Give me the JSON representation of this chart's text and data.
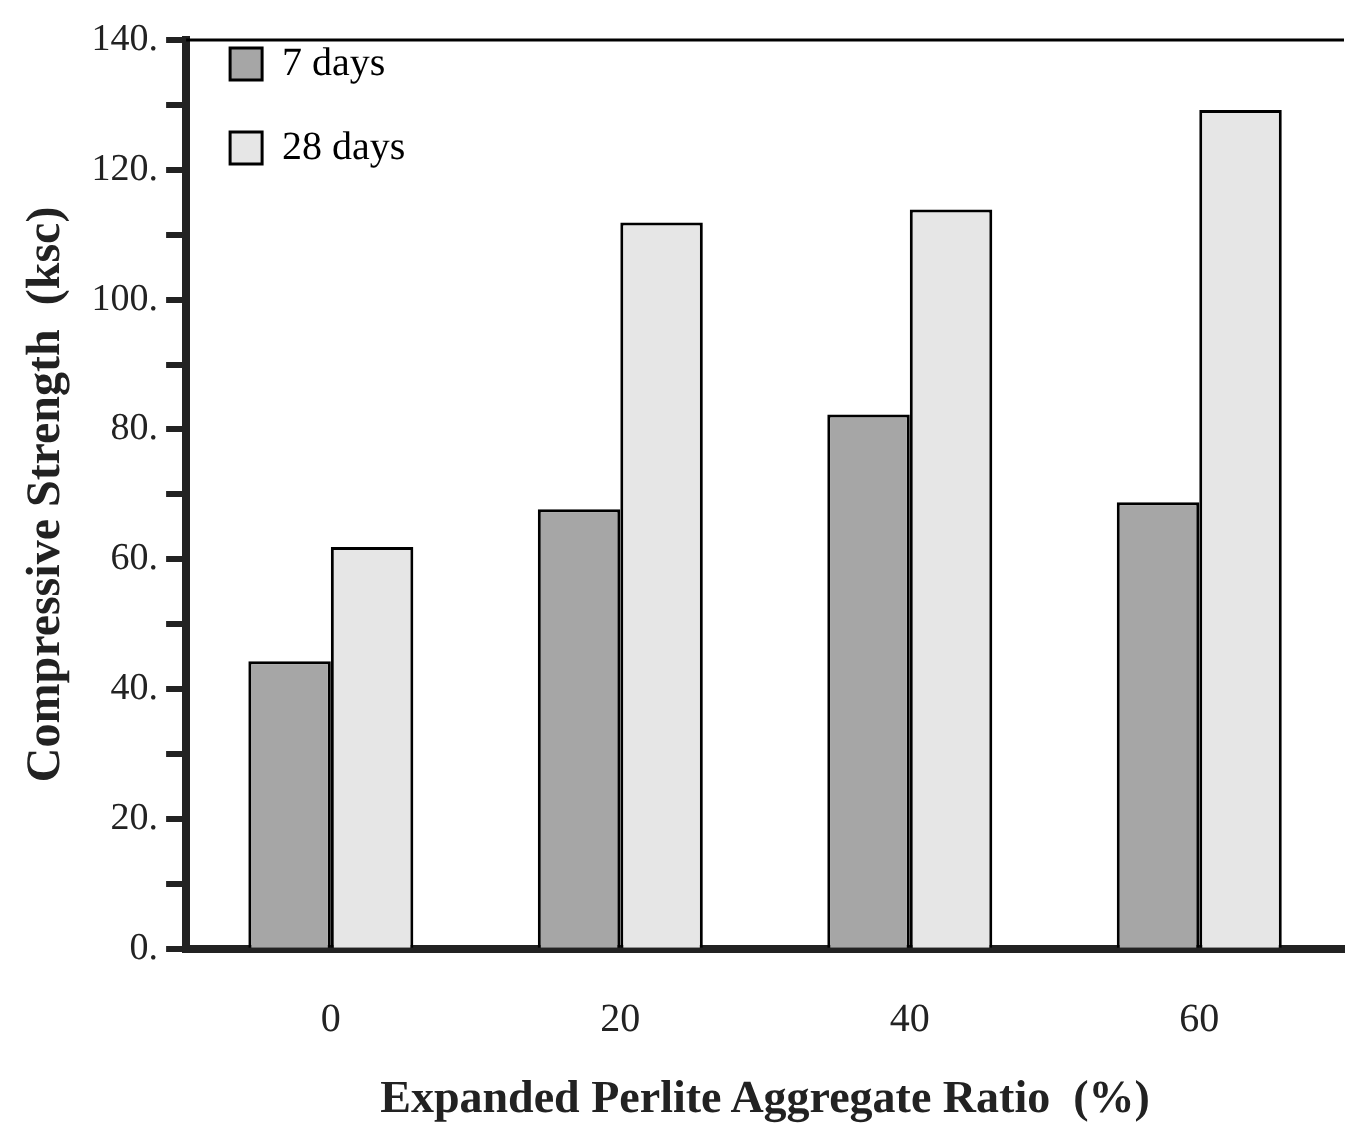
{
  "chart_data": {
    "type": "bar",
    "xlabel": "Expanded Perlite Aggregate Ratio  (%)",
    "ylabel": "Compressive Strength  (ksc)",
    "categories": [
      "0",
      "20",
      "40",
      "60"
    ],
    "series": [
      {
        "name": "7 days",
        "color": "#a6a6a6",
        "values": [
          44.3,
          67.7,
          82.3,
          68.8
        ]
      },
      {
        "name": "28 days",
        "color": "#e6e6e6",
        "values": [
          61.9,
          111.9,
          113.9,
          129.2
        ]
      }
    ],
    "ylim": [
      0,
      140
    ],
    "yticks": [
      {
        "value": 0,
        "label": "0."
      },
      {
        "value": 10,
        "label": null
      },
      {
        "value": 20,
        "label": "20."
      },
      {
        "value": 30,
        "label": null
      },
      {
        "value": 40,
        "label": "40."
      },
      {
        "value": 50,
        "label": null
      },
      {
        "value": 60,
        "label": "60."
      },
      {
        "value": 70,
        "label": null
      },
      {
        "value": 80,
        "label": "80."
      },
      {
        "value": 90,
        "label": null
      },
      {
        "value": 100,
        "label": "100."
      },
      {
        "value": 110,
        "label": null
      },
      {
        "value": 120,
        "label": "120."
      },
      {
        "value": 130,
        "label": null
      },
      {
        "value": 140,
        "label": "140."
      }
    ],
    "grid": false,
    "legend": "top left"
  }
}
